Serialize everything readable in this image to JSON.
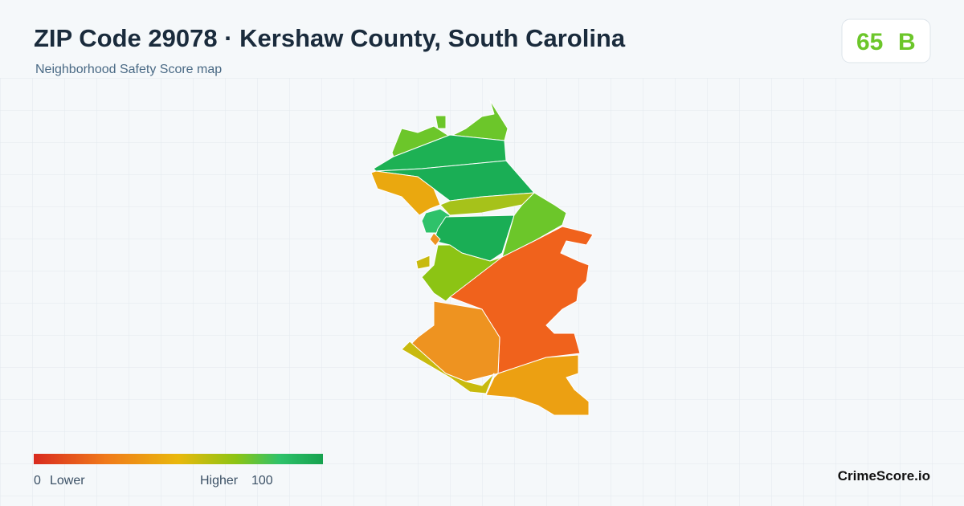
{
  "header": {
    "title": "ZIP Code 29078 · Kershaw County, South Carolina",
    "subtitle": "Neighborhood Safety Score map"
  },
  "badge": {
    "score": 65,
    "grade": "B"
  },
  "legend": {
    "min": 0,
    "min_label": "Lower",
    "max_label": "Higher",
    "max": 100
  },
  "footer": {
    "brand": "CrimeScore.io"
  }
}
